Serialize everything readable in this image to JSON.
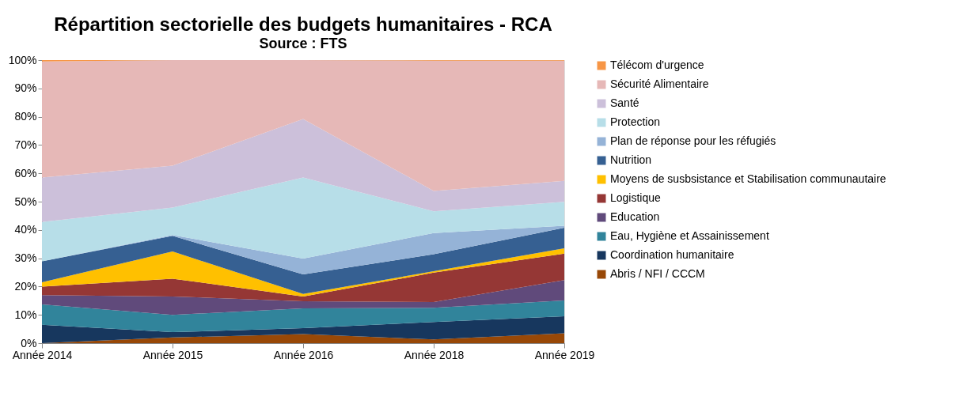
{
  "chart_data": {
    "type": "area",
    "stacked": true,
    "title": "Répartition sectorielle des budgets humanitaires - RCA",
    "subtitle": "Source : FTS",
    "categories": [
      "Année 2014",
      "Année 2015",
      "Année 2016",
      "Année 2018",
      "Année 2019"
    ],
    "series": [
      {
        "name": "Abris / NFI / CCCM",
        "color": "#984807",
        "values": [
          0,
          2.0,
          3.2,
          1.3,
          3.5
        ]
      },
      {
        "name": "Coordination humanitaire",
        "color": "#17375e",
        "values": [
          6.5,
          1.9,
          2.1,
          6.2,
          6.0
        ]
      },
      {
        "name": "Eau, Hygiène et Assainissement",
        "color": "#31849b",
        "values": [
          7.2,
          6.1,
          7.0,
          5.0,
          5.6
        ]
      },
      {
        "name": "Education",
        "color": "#604a7b",
        "values": [
          3.3,
          6.5,
          2.5,
          2.0,
          7.2
        ]
      },
      {
        "name": "Logistique",
        "color": "#953735",
        "values": [
          3.0,
          6.3,
          1.7,
          10.4,
          9.3
        ]
      },
      {
        "name": "Moyens de susbsistance et Stabilisation communautaire",
        "color": "#ffc000",
        "values": [
          1.5,
          9.6,
          0.9,
          0.5,
          1.9
        ]
      },
      {
        "name": "Nutrition",
        "color": "#366092",
        "values": [
          7.4,
          5.5,
          6.9,
          6.0,
          7.3
        ]
      },
      {
        "name": "Plan de réponse pour les réfugiés",
        "color": "#95b3d7",
        "values": [
          0,
          0.3,
          5.6,
          7.5,
          0.7
        ]
      },
      {
        "name": "Protection",
        "color": "#b7dee8",
        "values": [
          13.9,
          9.7,
          28.6,
          7.7,
          8.4
        ]
      },
      {
        "name": "Santé",
        "color": "#ccc0da",
        "values": [
          15.7,
          14.8,
          20.7,
          7.2,
          7.4
        ]
      },
      {
        "name": "Sécurité Alimentaire",
        "color": "#e6b8b7",
        "values": [
          41.0,
          37.3,
          20.8,
          46.0,
          42.5
        ]
      },
      {
        "name": "Télécom d'urgence",
        "color": "#f79646",
        "values": [
          0.5,
          0,
          0,
          0.2,
          0.2
        ]
      }
    ],
    "ylim": [
      0,
      100
    ],
    "yticks": [
      {
        "value": 0,
        "label": "0%"
      },
      {
        "value": 10,
        "label": "10%"
      },
      {
        "value": 20,
        "label": "20%"
      },
      {
        "value": 30,
        "label": "30%"
      },
      {
        "value": 40,
        "label": "40%"
      },
      {
        "value": 50,
        "label": "50%"
      },
      {
        "value": 60,
        "label": "60%"
      },
      {
        "value": 70,
        "label": "70%"
      },
      {
        "value": 80,
        "label": "80%"
      },
      {
        "value": 90,
        "label": "90%"
      },
      {
        "value": 100,
        "label": "100%"
      }
    ],
    "grid": false,
    "legend": "right"
  }
}
